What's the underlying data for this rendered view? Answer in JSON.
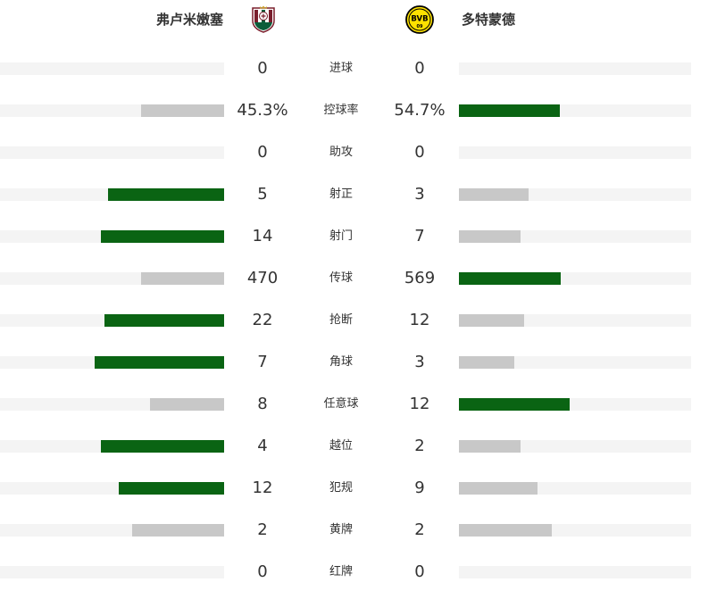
{
  "home_team": {
    "name": "弗卢米嫩塞",
    "logo_icon": "fluminense-crest-icon",
    "colors": {
      "primary": "#7a1e2c",
      "secondary": "#0b5d3a"
    }
  },
  "away_team": {
    "name": "多特蒙德",
    "logo_icon": "bvb-crest-icon",
    "colors": {
      "primary": "#fde100",
      "secondary": "#000000"
    }
  },
  "colors": {
    "lead_bar": "#0a6413",
    "trail_bar": "#c8c8c8",
    "track": "#f4f4f4"
  },
  "stats": [
    {
      "label": "进球",
      "home": "0",
      "away": "0",
      "home_share": 0,
      "away_share": 0,
      "leader": "none"
    },
    {
      "label": "控球率",
      "home": "45.3%",
      "away": "54.7%",
      "home_share": 0.37,
      "away_share": 0.435,
      "leader": "away"
    },
    {
      "label": "助攻",
      "home": "0",
      "away": "0",
      "home_share": 0,
      "away_share": 0,
      "leader": "none"
    },
    {
      "label": "射正",
      "home": "5",
      "away": "3",
      "home_share": 0.518,
      "away_share": 0.3,
      "leader": "home"
    },
    {
      "label": "射门",
      "home": "14",
      "away": "7",
      "home_share": 0.55,
      "away_share": 0.265,
      "leader": "home"
    },
    {
      "label": "传球",
      "home": "470",
      "away": "569",
      "home_share": 0.37,
      "away_share": 0.44,
      "leader": "away"
    },
    {
      "label": "抢断",
      "home": "22",
      "away": "12",
      "home_share": 0.534,
      "away_share": 0.28,
      "leader": "home"
    },
    {
      "label": "角球",
      "home": "7",
      "away": "3",
      "home_share": 0.578,
      "away_share": 0.24,
      "leader": "home"
    },
    {
      "label": "任意球",
      "home": "8",
      "away": "12",
      "home_share": 0.33,
      "away_share": 0.478,
      "leader": "away"
    },
    {
      "label": "越位",
      "home": "4",
      "away": "2",
      "home_share": 0.55,
      "away_share": 0.265,
      "leader": "home"
    },
    {
      "label": "犯规",
      "home": "12",
      "away": "9",
      "home_share": 0.47,
      "away_share": 0.34,
      "leader": "home"
    },
    {
      "label": "黄牌",
      "home": "2",
      "away": "2",
      "home_share": 0.41,
      "away_share": 0.4,
      "leader": "none"
    },
    {
      "label": "红牌",
      "home": "0",
      "away": "0",
      "home_share": 0,
      "away_share": 0,
      "leader": "none"
    }
  ]
}
